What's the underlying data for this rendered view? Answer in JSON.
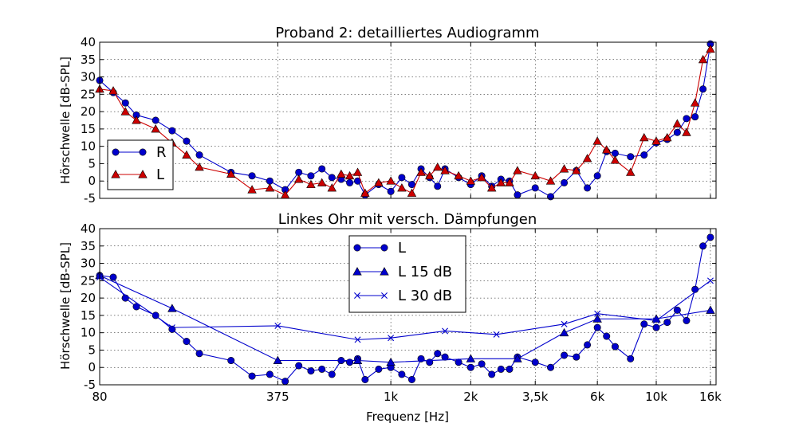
{
  "figure": {
    "xlabel": "Frequenz [Hz]",
    "xticks": [
      {
        "value": 80,
        "label": "80"
      },
      {
        "value": 375,
        "label": "375"
      },
      {
        "value": 1000,
        "label": "1k"
      },
      {
        "value": 2000,
        "label": "2k"
      },
      {
        "value": 3500,
        "label": "3,5k"
      },
      {
        "value": 6000,
        "label": "6k"
      },
      {
        "value": 10000,
        "label": "10k"
      },
      {
        "value": 16000,
        "label": "16k"
      }
    ]
  },
  "chart_data": [
    {
      "type": "line",
      "title": "Proband 2: detailliertes Audiogramm",
      "xlabel": "",
      "ylabel": "Hörschwelle [dB-SPL]",
      "xscale": "log",
      "xlim": [
        80,
        16800
      ],
      "ylim": [
        -5,
        40
      ],
      "yticks": [
        -5,
        0,
        5,
        10,
        15,
        20,
        25,
        30,
        35,
        40
      ],
      "grid": true,
      "legend": "center-left",
      "series": [
        {
          "name": "R",
          "color": "#0000cc",
          "marker": "circle",
          "points": [
            [
              80,
              29
            ],
            [
              90,
              25.5
            ],
            [
              100,
              22.5
            ],
            [
              110,
              19
            ],
            [
              130,
              17.5
            ],
            [
              150,
              14.5
            ],
            [
              170,
              11.5
            ],
            [
              190,
              7.5
            ],
            [
              250,
              2.5
            ],
            [
              300,
              1.5
            ],
            [
              350,
              0
            ],
            [
              400,
              -2.5
            ],
            [
              450,
              2.5
            ],
            [
              500,
              1.5
            ],
            [
              550,
              3.5
            ],
            [
              600,
              1
            ],
            [
              650,
              0.5
            ],
            [
              700,
              -0.5
            ],
            [
              750,
              0
            ],
            [
              800,
              -4
            ],
            [
              900,
              -1
            ],
            [
              1000,
              -3
            ],
            [
              1100,
              1
            ],
            [
              1200,
              -1
            ],
            [
              1300,
              3.5
            ],
            [
              1400,
              1
            ],
            [
              1500,
              -1.5
            ],
            [
              1600,
              3.5
            ],
            [
              1800,
              1
            ],
            [
              2000,
              -1
            ],
            [
              2200,
              1.5
            ],
            [
              2400,
              -1.5
            ],
            [
              2600,
              0.5
            ],
            [
              2800,
              0
            ],
            [
              3000,
              -4
            ],
            [
              3500,
              -2
            ],
            [
              4000,
              -4.5
            ],
            [
              4500,
              -0.5
            ],
            [
              5000,
              3
            ],
            [
              5500,
              -2
            ],
            [
              6000,
              1.5
            ],
            [
              6500,
              8.5
            ],
            [
              7000,
              8
            ],
            [
              8000,
              7
            ],
            [
              9000,
              7.5
            ],
            [
              10000,
              11
            ],
            [
              11000,
              12
            ],
            [
              12000,
              14
            ],
            [
              13000,
              18
            ],
            [
              14000,
              18.5
            ],
            [
              15000,
              26.5
            ],
            [
              16000,
              39.5
            ]
          ]
        },
        {
          "name": "L",
          "color": "#cc0000",
          "marker": "triangle",
          "points": [
            [
              80,
              26.5
            ],
            [
              90,
              26
            ],
            [
              100,
              20
            ],
            [
              110,
              17.5
            ],
            [
              130,
              15
            ],
            [
              150,
              11
            ],
            [
              170,
              7.5
            ],
            [
              190,
              4
            ],
            [
              250,
              2
            ],
            [
              300,
              -2.5
            ],
            [
              350,
              -2
            ],
            [
              400,
              -4
            ],
            [
              450,
              0.5
            ],
            [
              500,
              -1
            ],
            [
              550,
              -0.5
            ],
            [
              600,
              -2
            ],
            [
              650,
              2
            ],
            [
              700,
              1.5
            ],
            [
              750,
              2.5
            ],
            [
              800,
              -3.5
            ],
            [
              900,
              -0.5
            ],
            [
              1000,
              0
            ],
            [
              1100,
              -2
            ],
            [
              1200,
              -3.5
            ],
            [
              1300,
              2.5
            ],
            [
              1400,
              1.5
            ],
            [
              1500,
              4
            ],
            [
              1600,
              3
            ],
            [
              1800,
              1.5
            ],
            [
              2000,
              0
            ],
            [
              2200,
              1
            ],
            [
              2400,
              -2
            ],
            [
              2600,
              -0.5
            ],
            [
              2800,
              -0.5
            ],
            [
              3000,
              3
            ],
            [
              3500,
              1.5
            ],
            [
              4000,
              0
            ],
            [
              4500,
              3.5
            ],
            [
              5000,
              3
            ],
            [
              5500,
              6.5
            ],
            [
              6000,
              11.5
            ],
            [
              6500,
              9
            ],
            [
              7000,
              6
            ],
            [
              8000,
              2.5
            ],
            [
              9000,
              12.5
            ],
            [
              10000,
              11.5
            ],
            [
              11000,
              12.5
            ],
            [
              12000,
              16.5
            ],
            [
              13000,
              14
            ],
            [
              14000,
              22.5
            ],
            [
              15000,
              35
            ],
            [
              16000,
              38
            ]
          ]
        }
      ]
    },
    {
      "type": "line",
      "title": "Linkes Ohr mit versch. Dämpfungen",
      "xlabel": "Frequenz [Hz]",
      "ylabel": "Hörschwelle [dB-SPL]",
      "xscale": "log",
      "xlim": [
        80,
        16800
      ],
      "ylim": [
        -5,
        40
      ],
      "yticks": [
        -5,
        0,
        5,
        10,
        15,
        20,
        25,
        30,
        35,
        40
      ],
      "grid": true,
      "legend": "top-center",
      "series": [
        {
          "name": "L",
          "color": "#0000cc",
          "marker": "circle",
          "points": [
            [
              80,
              26.5
            ],
            [
              90,
              26
            ],
            [
              100,
              20
            ],
            [
              110,
              17.5
            ],
            [
              130,
              15
            ],
            [
              150,
              11
            ],
            [
              170,
              7.5
            ],
            [
              190,
              4
            ],
            [
              250,
              2
            ],
            [
              300,
              -2.5
            ],
            [
              350,
              -2
            ],
            [
              400,
              -4
            ],
            [
              450,
              0.5
            ],
            [
              500,
              -1
            ],
            [
              550,
              -0.5
            ],
            [
              600,
              -2
            ],
            [
              650,
              2
            ],
            [
              700,
              1.5
            ],
            [
              750,
              2.5
            ],
            [
              800,
              -3.5
            ],
            [
              900,
              -0.5
            ],
            [
              1000,
              0
            ],
            [
              1100,
              -2
            ],
            [
              1200,
              -3.5
            ],
            [
              1300,
              2.5
            ],
            [
              1400,
              1.5
            ],
            [
              1500,
              4
            ],
            [
              1600,
              3
            ],
            [
              1800,
              1.5
            ],
            [
              2000,
              0
            ],
            [
              2200,
              1
            ],
            [
              2400,
              -2
            ],
            [
              2600,
              -0.5
            ],
            [
              2800,
              -0.5
            ],
            [
              3000,
              3
            ],
            [
              3500,
              1.5
            ],
            [
              4000,
              0
            ],
            [
              4500,
              3.5
            ],
            [
              5000,
              3
            ],
            [
              5500,
              6.5
            ],
            [
              6000,
              11.5
            ],
            [
              6500,
              9
            ],
            [
              7000,
              6
            ],
            [
              8000,
              2.5
            ],
            [
              9000,
              12.5
            ],
            [
              10000,
              11.5
            ],
            [
              11000,
              13
            ],
            [
              12000,
              16.5
            ],
            [
              13000,
              13.5
            ],
            [
              14000,
              22.5
            ],
            [
              15000,
              35
            ],
            [
              16000,
              37.5
            ]
          ]
        },
        {
          "name": "L 15 dB",
          "color": "#0000cc",
          "marker": "triangle",
          "points": [
            [
              80,
              26.5
            ],
            [
              150,
              17
            ],
            [
              375,
              2
            ],
            [
              750,
              2
            ],
            [
              1000,
              1.5
            ],
            [
              2000,
              2.5
            ],
            [
              3000,
              2.5
            ],
            [
              4500,
              10
            ],
            [
              6000,
              14
            ],
            [
              10000,
              14
            ],
            [
              16000,
              16.5
            ]
          ]
        },
        {
          "name": "L 30 dB",
          "color": "#0000cc",
          "marker": "x",
          "points": [
            [
              80,
              26
            ],
            [
              150,
              11.5
            ],
            [
              375,
              12
            ],
            [
              750,
              8
            ],
            [
              1000,
              8.5
            ],
            [
              1600,
              10.5
            ],
            [
              2500,
              9.5
            ],
            [
              4500,
              12.5
            ],
            [
              6000,
              15.5
            ],
            [
              10000,
              13.5
            ],
            [
              16000,
              25
            ]
          ]
        }
      ]
    }
  ]
}
